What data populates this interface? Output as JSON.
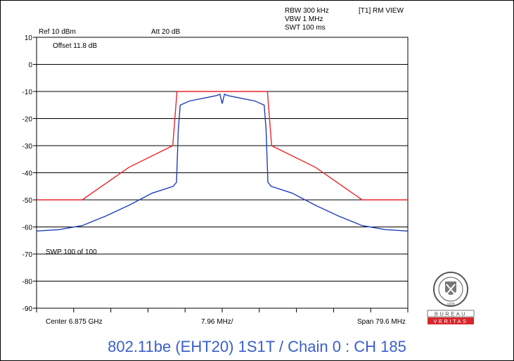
{
  "header": {
    "rbw": "RBW 300 kHz",
    "vbw": "VBW 1 MHz",
    "swt": "SWT 100 ms",
    "trace": "[T1] RM VIEW",
    "ref": "Ref 10 dBm",
    "att": "Att  20 dB",
    "offset": "Offset 11.8 dB",
    "sweep": "SWP 100 of 100"
  },
  "footer": {
    "center": "Center 6.875 GHz",
    "div": "7.96 MHz/",
    "span": "Span 79.6 MHz"
  },
  "caption": "802.11be (EHT20) 1S1T / Chain 0 : CH 185",
  "logo": {
    "top": "BUREAU",
    "bottom": "VERITAS",
    "year": "1828",
    "color": "#d7272c"
  },
  "chart_data": {
    "type": "line",
    "center_freq_ghz": 6.875,
    "span_mhz": 79.6,
    "x_unit": "MHz offset from center",
    "xlim": [
      -39.8,
      39.8
    ],
    "ylim": [
      -90,
      10
    ],
    "y_unit": "dBm",
    "yticks": [
      10,
      0,
      -10,
      -20,
      -30,
      -40,
      -50,
      -60,
      -70,
      -80,
      -90
    ],
    "grid": true,
    "series": [
      {
        "role": "limit mask",
        "color": "#e8262b",
        "points": [
          [
            -39.8,
            -50
          ],
          [
            -30.0,
            -50
          ],
          [
            -20.0,
            -38
          ],
          [
            -10.6,
            -30
          ],
          [
            -9.7,
            -10
          ],
          [
            9.7,
            -10
          ],
          [
            10.6,
            -30
          ],
          [
            20.0,
            -38
          ],
          [
            30.0,
            -50
          ],
          [
            39.8,
            -50
          ]
        ]
      },
      {
        "role": "measured trace",
        "color": "#1f3fb8",
        "points": [
          [
            -39.8,
            -61.5
          ],
          [
            -35,
            -61
          ],
          [
            -30,
            -59.5
          ],
          [
            -25,
            -56
          ],
          [
            -20,
            -52
          ],
          [
            -15,
            -47.5
          ],
          [
            -10.5,
            -45
          ],
          [
            -9.8,
            -43.5
          ],
          [
            -9.4,
            -24
          ],
          [
            -9.0,
            -15
          ],
          [
            -7,
            -13.5
          ],
          [
            -4,
            -12.5
          ],
          [
            -1.2,
            -11.5
          ],
          [
            -0.5,
            -11
          ],
          [
            0,
            -14.5
          ],
          [
            0.5,
            -11
          ],
          [
            1.2,
            -11.5
          ],
          [
            4,
            -12.5
          ],
          [
            7,
            -13.5
          ],
          [
            9.0,
            -15
          ],
          [
            9.4,
            -24
          ],
          [
            9.8,
            -43.5
          ],
          [
            10.5,
            -45
          ],
          [
            15,
            -47.5
          ],
          [
            20,
            -52
          ],
          [
            25,
            -56
          ],
          [
            30,
            -59.5
          ],
          [
            35,
            -61
          ],
          [
            39.8,
            -61.5
          ]
        ]
      }
    ]
  }
}
